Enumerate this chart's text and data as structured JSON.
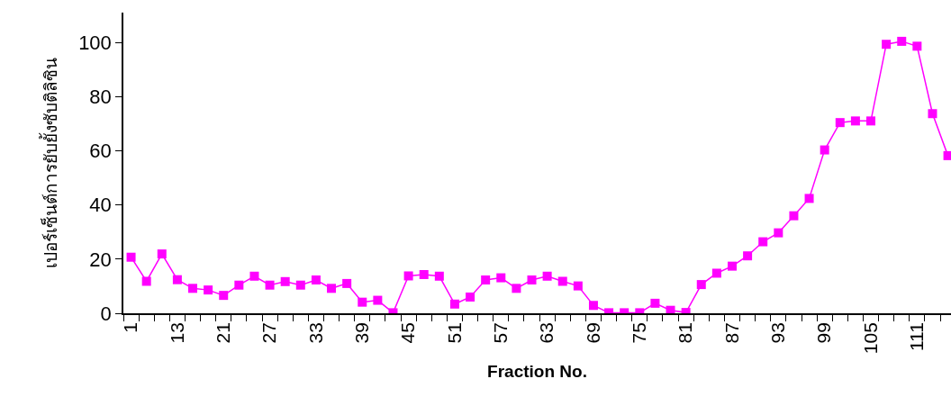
{
  "chart_data": {
    "type": "line",
    "xlabel": "Fraction No.",
    "ylabel": "เปอร์เซ็นต์การยับยั้งซับติลิซิน",
    "categories": [
      "1",
      null,
      null,
      "13",
      null,
      null,
      "21",
      null,
      null,
      "27",
      null,
      null,
      "33",
      null,
      null,
      "39",
      null,
      null,
      "45",
      null,
      null,
      "51",
      null,
      null,
      "57",
      null,
      null,
      "63",
      null,
      null,
      "69",
      null,
      null,
      "75",
      null,
      null,
      "81",
      null,
      null,
      "87",
      null,
      null,
      "93",
      null,
      null,
      "99",
      null,
      null,
      "105",
      null,
      null,
      "111",
      null,
      null
    ],
    "series": [
      {
        "color": "#ff00ff",
        "values": [
          20.7,
          11.8,
          21.9,
          12.4,
          9.2,
          8.6,
          6.6,
          10.4,
          13.7,
          10.4,
          11.7,
          10.4,
          12.3,
          9.2,
          11,
          4.1,
          4.8,
          0.2,
          13.8,
          14.3,
          13.7,
          3.4,
          6,
          12.3,
          13.1,
          9.2,
          12.3,
          13.7,
          11.8,
          10.1,
          2.9,
          0.2,
          0.2,
          0.2,
          3.7,
          1.1,
          0.3,
          10.6,
          14.8,
          17.4,
          21.2,
          26.4,
          29.7,
          36,
          42.4,
          60.3,
          70.4,
          71,
          71,
          99.3,
          100.4,
          98.6,
          73.7,
          58.2
        ]
      }
    ],
    "ylim": [
      0,
      111
    ],
    "yticks": [
      0,
      20,
      40,
      60,
      80,
      100
    ],
    "legend": false,
    "marker": "square",
    "line_style": "solid"
  }
}
